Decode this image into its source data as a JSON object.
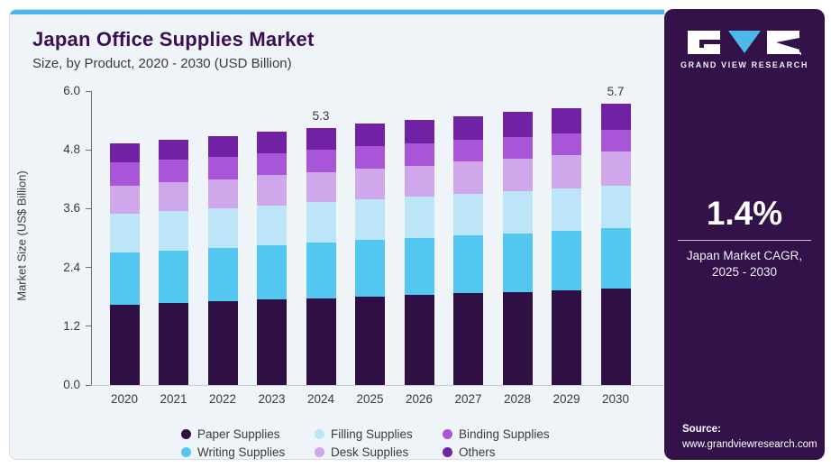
{
  "header": {
    "title": "Japan Office Supplies Market",
    "subtitle": "Size, by Product, 2020 - 2030 (USD Billion)"
  },
  "colors": {
    "accent_stripe": "#47b7e9",
    "sidebar_bg": "#33124a",
    "main_bg": "#eff4f9",
    "title_text": "#3c0e56",
    "logo_triangle": "#4cb9e8"
  },
  "chart_data": {
    "type": "bar",
    "stacked": true,
    "title": "Japan Office Supplies Market Size, by Product, 2020 - 2030 (USD Billion)",
    "xlabel": "",
    "ylabel": "Market Size (US$ Billion)",
    "ylim": [
      0,
      6.0
    ],
    "yticks": [
      0.0,
      1.2,
      2.4,
      3.6,
      4.8,
      6.0
    ],
    "grid": false,
    "legend_position": "bottom",
    "categories": [
      "2020",
      "2021",
      "2022",
      "2023",
      "2024",
      "2025",
      "2026",
      "2027",
      "2028",
      "2029",
      "2030"
    ],
    "series": [
      {
        "name": "Paper Supplies",
        "color": "#2e1045",
        "values": [
          1.64,
          1.67,
          1.71,
          1.74,
          1.77,
          1.81,
          1.84,
          1.87,
          1.9,
          1.94,
          1.97
        ]
      },
      {
        "name": "Writing Supplies",
        "color": "#53c7f1",
        "values": [
          1.06,
          1.08,
          1.09,
          1.11,
          1.13,
          1.15,
          1.16,
          1.18,
          1.2,
          1.21,
          1.23
        ]
      },
      {
        "name": "Filling Supplies",
        "color": "#bce6f8",
        "values": [
          0.8,
          0.81,
          0.81,
          0.82,
          0.83,
          0.83,
          0.84,
          0.85,
          0.85,
          0.86,
          0.87
        ]
      },
      {
        "name": "Desk Supplies",
        "color": "#d0a7eb",
        "values": [
          0.57,
          0.58,
          0.59,
          0.61,
          0.62,
          0.63,
          0.64,
          0.66,
          0.67,
          0.68,
          0.69
        ]
      },
      {
        "name": "Binding Supplies",
        "color": "#a855d8",
        "values": [
          0.47,
          0.47,
          0.46,
          0.46,
          0.45,
          0.45,
          0.45,
          0.44,
          0.44,
          0.44,
          0.44
        ]
      },
      {
        "name": "Others",
        "color": "#7122a4",
        "values": [
          0.39,
          0.4,
          0.42,
          0.43,
          0.45,
          0.46,
          0.48,
          0.49,
          0.51,
          0.52,
          0.54
        ]
      }
    ],
    "bar_labels": {
      "2024": "5.3",
      "2030": "5.7"
    }
  },
  "sidebar": {
    "logo_text": "GRAND VIEW RESEARCH",
    "cagr_value": "1.4%",
    "cagr_label_line1": "Japan Market CAGR,",
    "cagr_label_line2": "2025 - 2030",
    "source_label": "Source:",
    "source_url": "www.grandviewresearch.com"
  }
}
